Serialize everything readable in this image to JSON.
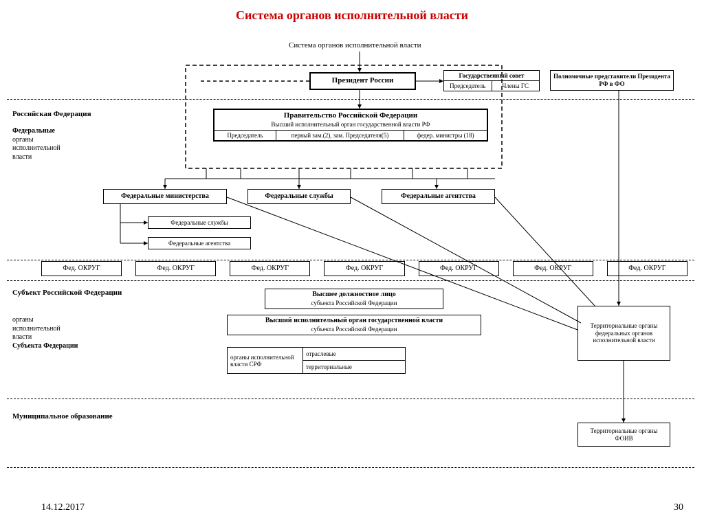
{
  "title": "Система органов исполнительной власти",
  "subtitle": "Система органов исполнительной власти",
  "president": "Президент России",
  "gos_sovet": {
    "header": "Государственный совет",
    "left": "Председатель",
    "right": "Члены ГС"
  },
  "polpred": "Полномочные представители Президента РФ в ФО",
  "government": {
    "title": "Правительство Российской Федерации",
    "subtitle": "Высший исполнительный орган государственной власти РФ",
    "cells": [
      "Председатель",
      "первый зам.(2), зам. Председателя(5)",
      "федер. министры (18)"
    ]
  },
  "level1_label": "Российская Федерация",
  "level1_sub": "Федеральные органы исполнительной власти",
  "fed_blocks": [
    "Федеральные министерства",
    "Федеральные службы",
    "Федеральные агентства"
  ],
  "sub_blocks": [
    "Федеральные службы",
    "Федеральные агентства"
  ],
  "okrug": "Фед. ОКРУГ",
  "okrug_count": 7,
  "level2_label": "Субъект Российской Федерации",
  "level2_sub": "органы исполнительной власти Субъекта Федерации",
  "vdl": {
    "title": "Высшее должностное лицо",
    "sub": "субъекта Российской Федерации"
  },
  "vio": {
    "title": "Высший исполнительный орган государственной власти",
    "sub": "субъекта Российской Федерации"
  },
  "srf_table": {
    "left": "органы исполнительной власти СРФ",
    "r1": "отраслевые",
    "r2": "территориальные"
  },
  "territ_foiv": "Территориальные органы федеральных органов исполнительной власти",
  "level3_label": "Муниципальное образование",
  "territ_foiv2": "Территориальные органы ФОИВ",
  "date": "14.12.2017",
  "page": "30",
  "colors": {
    "title": "#cc0000",
    "line": "#000000",
    "bg": "#ffffff"
  }
}
